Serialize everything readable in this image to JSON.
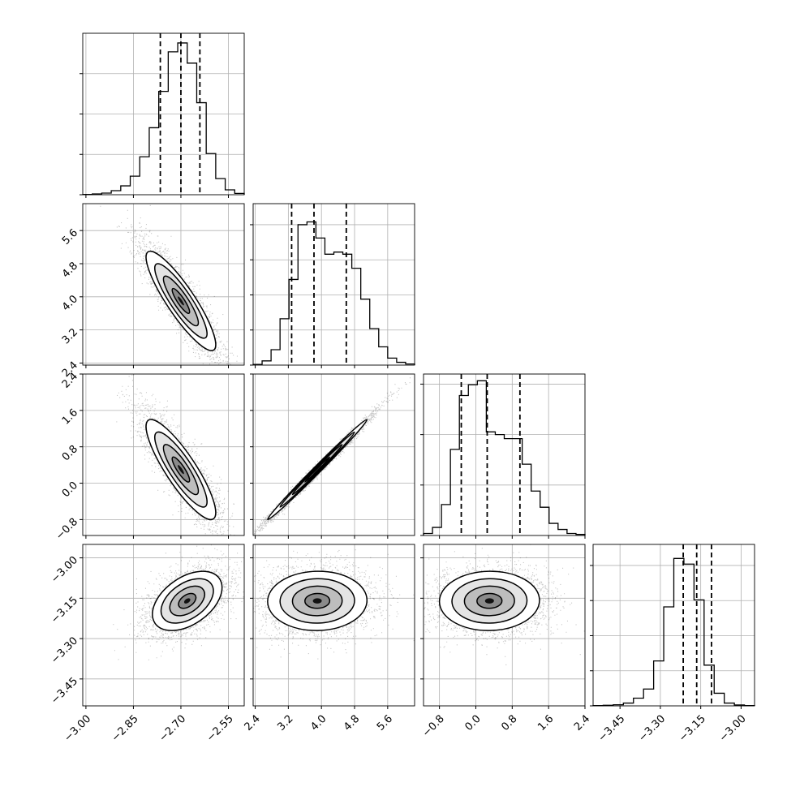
{
  "chart_data": {
    "type": "corner",
    "parameters": [
      {
        "ticks": [
          "−3.00",
          "−2.85",
          "−2.70",
          "−2.55"
        ],
        "tick_values": [
          -3.0,
          -2.85,
          -2.7,
          -2.55
        ],
        "range": [
          -3.01,
          -2.5
        ],
        "quantiles": [
          -2.765,
          -2.7,
          -2.64
        ]
      },
      {
        "ticks": [
          "2.4",
          "3.2",
          "4.0",
          "4.8",
          "5.6"
        ],
        "tick_values": [
          2.4,
          3.2,
          4.0,
          4.8,
          5.6
        ],
        "range": [
          2.35,
          6.25
        ],
        "quantiles": [
          3.28,
          3.82,
          4.6
        ]
      },
      {
        "ticks": [
          "−0.8",
          "0.0",
          "0.8",
          "1.6",
          "2.4"
        ],
        "tick_values": [
          -0.8,
          0.0,
          0.8,
          1.6,
          2.4
        ],
        "range": [
          -1.15,
          2.4
        ],
        "quantiles": [
          -0.32,
          0.25,
          0.97
        ]
      },
      {
        "ticks": [
          "−3.45",
          "−3.30",
          "−3.15",
          "−3.00"
        ],
        "tick_values": [
          -3.45,
          -3.3,
          -3.15,
          -3.0
        ],
        "range": [
          -3.55,
          -2.95
        ],
        "quantiles": [
          -3.215,
          -3.165,
          -3.11
        ]
      }
    ],
    "histograms": [
      {
        "counts": [
          2,
          5,
          10,
          25,
          55,
          115,
          235,
          415,
          640,
          885,
          940,
          815,
          570,
          255,
          100,
          30,
          8
        ],
        "ylim": [
          0,
          1000
        ],
        "yticks": [
          0,
          250,
          500,
          750
        ]
      },
      {
        "counts": [
          5,
          30,
          110,
          330,
          610,
          1000,
          1020,
          905,
          790,
          805,
          790,
          690,
          470,
          260,
          130,
          50,
          20,
          8
        ],
        "ylim": [
          0,
          1150
        ],
        "yticks": [
          0,
          250,
          500,
          750,
          1000
        ]
      },
      {
        "counts": [
          15,
          60,
          230,
          640,
          1040,
          1120,
          1150,
          770,
          750,
          720,
          720,
          530,
          330,
          210,
          90,
          45,
          15,
          8
        ],
        "ylim": [
          0,
          1200
        ],
        "yticks": [
          0,
          375,
          750,
          1125
        ]
      },
      {
        "counts": [
          2,
          4,
          8,
          20,
          55,
          120,
          320,
          705,
          1050,
          1010,
          755,
          290,
          90,
          20,
          6,
          2
        ],
        "ylim": [
          0,
          1150
        ],
        "yticks": [
          0,
          250,
          500,
          750,
          1000
        ]
      }
    ],
    "pairs": [
      {
        "row": 1,
        "col": 0,
        "mean": [
          -2.7,
          3.9
        ],
        "sd": [
          0.055,
          0.6
        ],
        "rho": -0.88
      },
      {
        "row": 2,
        "col": 0,
        "mean": [
          -2.7,
          0.3
        ],
        "sd": [
          0.055,
          0.55
        ],
        "rho": -0.86
      },
      {
        "row": 2,
        "col": 1,
        "mean": [
          3.9,
          0.3
        ],
        "sd": [
          0.6,
          0.55
        ],
        "rho": 0.995
      },
      {
        "row": 3,
        "col": 0,
        "mean": [
          -2.68,
          -3.16
        ],
        "sd": [
          0.055,
          0.055
        ],
        "rho": 0.45
      },
      {
        "row": 3,
        "col": 1,
        "mean": [
          3.9,
          -3.16
        ],
        "sd": [
          0.6,
          0.055
        ],
        "rho": 0.02
      },
      {
        "row": 3,
        "col": 2,
        "mean": [
          0.3,
          -3.16
        ],
        "sd": [
          0.55,
          0.055
        ],
        "rho": 0.02
      }
    ]
  }
}
